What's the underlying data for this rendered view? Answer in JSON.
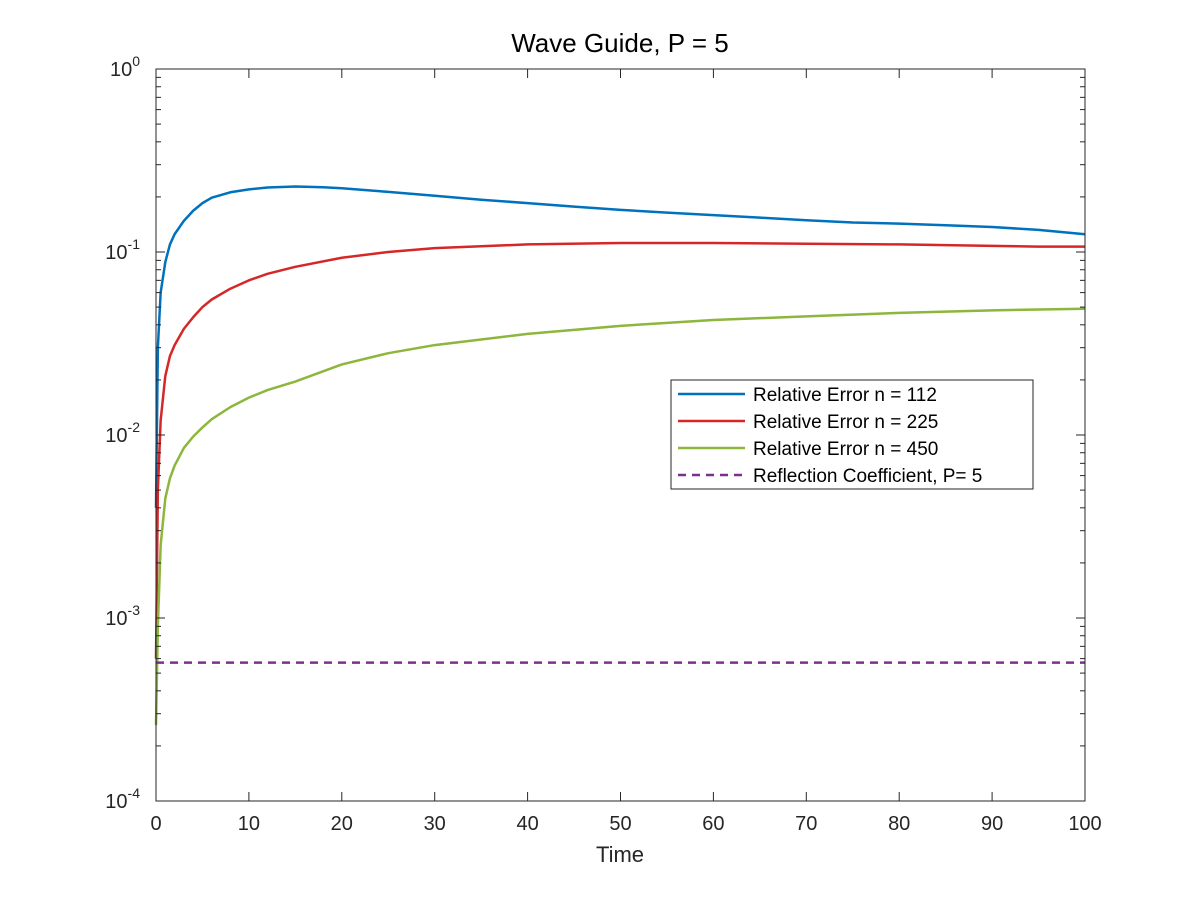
{
  "chart_data": {
    "type": "line",
    "title": "Wave Guide, P = 5",
    "xlabel": "Time",
    "ylabel": "",
    "xlim": [
      0,
      100
    ],
    "ylim": [
      0.0001,
      1
    ],
    "yscale": "log",
    "grid": false,
    "legend_position": "right",
    "xticks": [
      0,
      10,
      20,
      30,
      40,
      50,
      60,
      70,
      80,
      90,
      100
    ],
    "xtick_labels": [
      "0",
      "10",
      "20",
      "30",
      "40",
      "50",
      "60",
      "70",
      "80",
      "90",
      "100"
    ],
    "yticks": [
      {
        "value": 0.0001,
        "base": "10",
        "exp": "-4"
      },
      {
        "value": 0.001,
        "base": "10",
        "exp": "-3"
      },
      {
        "value": 0.01,
        "base": "10",
        "exp": "-2"
      },
      {
        "value": 0.1,
        "base": "10",
        "exp": "-1"
      },
      {
        "value": 1,
        "base": "10",
        "exp": "0"
      }
    ],
    "series": [
      {
        "name": "Relative Error n = 112",
        "color": "#0072BD",
        "style": "solid",
        "x": [
          0,
          0.2,
          0.5,
          1,
          1.5,
          2,
          3,
          4,
          5,
          6,
          8,
          10,
          12,
          15,
          18,
          20,
          25,
          30,
          35,
          40,
          45,
          50,
          55,
          60,
          65,
          70,
          75,
          80,
          85,
          90,
          95,
          100
        ],
        "y": [
          0.004,
          0.03,
          0.06,
          0.088,
          0.11,
          0.125,
          0.148,
          0.168,
          0.185,
          0.198,
          0.212,
          0.22,
          0.225,
          0.228,
          0.226,
          0.223,
          0.213,
          0.203,
          0.193,
          0.185,
          0.177,
          0.17,
          0.164,
          0.159,
          0.154,
          0.149,
          0.145,
          0.143,
          0.14,
          0.137,
          0.132,
          0.125
        ]
      },
      {
        "name": "Relative Error n = 225",
        "color": "#D62728",
        "style": "solid",
        "x": [
          0,
          0.2,
          0.5,
          1,
          1.5,
          2,
          3,
          4,
          5,
          6,
          8,
          10,
          12,
          15,
          20,
          25,
          30,
          40,
          50,
          60,
          70,
          80,
          90,
          95,
          100
        ],
        "y": [
          0.0006,
          0.005,
          0.012,
          0.021,
          0.027,
          0.031,
          0.038,
          0.044,
          0.05,
          0.055,
          0.063,
          0.07,
          0.076,
          0.083,
          0.093,
          0.1,
          0.105,
          0.11,
          0.112,
          0.112,
          0.111,
          0.11,
          0.108,
          0.107,
          0.107
        ]
      },
      {
        "name": "Relative Error n = 450",
        "color": "#8CB63C",
        "style": "solid",
        "x": [
          0,
          0.2,
          0.5,
          1,
          1.5,
          2,
          3,
          4,
          5,
          6,
          8,
          10,
          12,
          15,
          20,
          25,
          30,
          40,
          50,
          60,
          70,
          80,
          90,
          100
        ],
        "y": [
          0.00026,
          0.0009,
          0.0025,
          0.0045,
          0.0058,
          0.0068,
          0.0085,
          0.0098,
          0.011,
          0.0122,
          0.0142,
          0.016,
          0.0176,
          0.0196,
          0.0243,
          0.028,
          0.031,
          0.0357,
          0.0395,
          0.0425,
          0.0445,
          0.0465,
          0.048,
          0.049
        ]
      },
      {
        "name": "Reflection Coefficient, P= 5",
        "color": "#7E2F8E",
        "style": "dashed",
        "x": [
          0,
          100
        ],
        "y": [
          0.00057,
          0.00057
        ]
      }
    ]
  }
}
